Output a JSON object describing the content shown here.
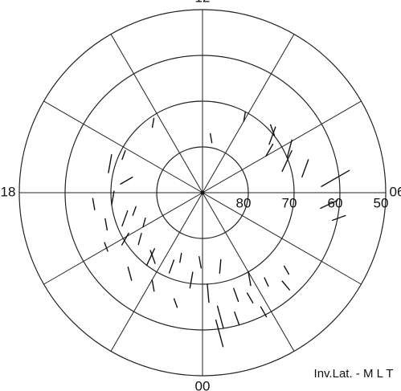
{
  "chart_data": {
    "type": "polar-vector",
    "axis_label": "Inv.Lat. - M L T",
    "rlim": [
      90,
      50
    ],
    "rticks": [
      80,
      70,
      60,
      50
    ],
    "mlt_ticks": [
      12,
      {
        "value": 6,
        "label": "06"
      },
      {
        "value": 0,
        "label": "00"
      },
      18
    ],
    "spoke_step": 2,
    "vectors": {
      "mlt": [
        18.5,
        19,
        19.5,
        19.8,
        20.2,
        20.6,
        21,
        21.5,
        22,
        22.5,
        23,
        23.5,
        0.2,
        0.5,
        0.8,
        1.2,
        1.6,
        2,
        2.4,
        2.8,
        3.2,
        17.6,
        17.2,
        18.2,
        19.2,
        20,
        21.2,
        22.8,
        23.8,
        0.4,
        1,
        1.8,
        6.2,
        6.6,
        7,
        7.5,
        8,
        8.4,
        9,
        10,
        5.5,
        5.2,
        16.5,
        14.5,
        11.5
      ],
      "lat": [
        70,
        68,
        71,
        66,
        69,
        72,
        67,
        70,
        68,
        71,
        66,
        69,
        70,
        65,
        72,
        68,
        66,
        70,
        67,
        64,
        66,
        72,
        69,
        66,
        74,
        75,
        73,
        74,
        76,
        62,
        63,
        62,
        64,
        68,
        72,
        70,
        74,
        72,
        69,
        72,
        64,
        61,
        71,
        72,
        77
      ],
      "dir": [
        10,
        170,
        20,
        160,
        30,
        15,
        165,
        25,
        170,
        20,
        160,
        10,
        175,
        165,
        5,
        160,
        150,
        170,
        155,
        140,
        150,
        60,
        10,
        170,
        20,
        15,
        160,
        10,
        170,
        165,
        160,
        150,
        60,
        20,
        25,
        15,
        30,
        20,
        160,
        10,
        65,
        70,
        20,
        10,
        170
      ],
      "len": [
        3,
        2.5,
        3.5,
        2,
        3,
        2.5,
        3,
        4,
        2.5,
        3,
        2,
        3.5,
        4,
        5,
        3,
        3,
        2.5,
        3,
        2,
        2.5,
        2,
        3,
        4,
        2.5,
        2,
        2,
        3,
        2,
        2.5,
        6,
        3,
        2.5,
        7,
        4,
        5,
        4,
        3,
        4,
        2.5,
        2,
        4,
        3,
        2,
        2,
        2
      ]
    }
  }
}
